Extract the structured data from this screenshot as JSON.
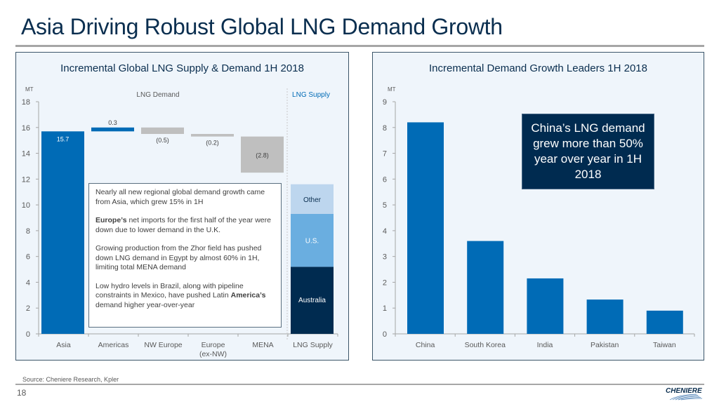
{
  "slide": {
    "title": "Asia Driving Robust Global LNG Demand Growth",
    "source": "Source: Cheniere Research, Kpler",
    "page_number": "18",
    "logo_text": "CHENIERE"
  },
  "colors": {
    "demand_blue": "#006bb6",
    "decline_gray": "#bfbfbf",
    "supply_australia": "#002b50",
    "supply_us": "#6aaee0",
    "supply_other": "#bdd6ee",
    "navy": "#0a2e4f"
  },
  "left_panel": {
    "title": "Incremental Global LNG Supply & Demand 1H 2018",
    "section_demand": "LNG Demand",
    "section_supply": "LNG Supply",
    "textbox": {
      "p1": "Nearly all new regional global demand growth came from Asia, which grew 15% in 1H",
      "p2_bold": "Europe’s",
      "p2": " net imports for the first half of the year were down due to lower demand in the U.K.",
      "p3": "Growing production from the Zhor field has pushed down LNG demand in Egypt by almost 60% in 1H, limiting total MENA demand",
      "p4_a": "Low hydro levels in Brazil, along with pipeline constraints in Mexico, have pushed Latin ",
      "p4_bold": "America’s",
      "p4_b": " demand higher year-over-year"
    }
  },
  "right_panel": {
    "title": "Incremental Demand Growth Leaders 1H 2018",
    "callout": "China’s LNG demand grew more than 50% year over year in 1H 2018"
  },
  "chart_data": [
    {
      "type": "bar",
      "subtype": "waterfall",
      "title": "Incremental Global LNG Supply & Demand 1H 2018",
      "ylabel": "MT",
      "ylim": [
        0,
        18
      ],
      "yticks": [
        0,
        2,
        4,
        6,
        8,
        10,
        12,
        14,
        16,
        18
      ],
      "grid": false,
      "categories": [
        "Asia",
        "Americas",
        "NW Europe",
        "Europe (ex-NW)",
        "MENA",
        "LNG Supply"
      ],
      "category_labels": [
        [
          "Asia"
        ],
        [
          "Americas"
        ],
        [
          "NW Europe"
        ],
        [
          "Europe",
          "(ex-NW)"
        ],
        [
          "MENA"
        ],
        [
          "LNG Supply"
        ]
      ],
      "demand_changes": [
        {
          "category": "Asia",
          "value": 15.7,
          "label": "15.7"
        },
        {
          "category": "Americas",
          "value": 0.3,
          "label": "0.3"
        },
        {
          "category": "NW Europe",
          "value": -0.5,
          "label": "(0.5)"
        },
        {
          "category": "Europe (ex-NW)",
          "value": -0.2,
          "label": "(0.2)"
        },
        {
          "category": "MENA",
          "value": -2.8,
          "label": "(2.8)"
        }
      ],
      "supply_stack": [
        {
          "name": "Australia",
          "value": 5.2
        },
        {
          "name": "U.S.",
          "value": 4.1
        },
        {
          "name": "Other",
          "value": 2.3
        }
      ]
    },
    {
      "type": "bar",
      "title": "Incremental Demand Growth Leaders 1H 2018",
      "ylabel": "MT",
      "ylim": [
        0,
        9
      ],
      "yticks": [
        0,
        1,
        2,
        3,
        4,
        5,
        6,
        7,
        8,
        9
      ],
      "grid": false,
      "categories": [
        "China",
        "South Korea",
        "India",
        "Pakistan",
        "Taiwan"
      ],
      "values": [
        8.2,
        3.6,
        2.15,
        1.33,
        0.9
      ]
    }
  ]
}
